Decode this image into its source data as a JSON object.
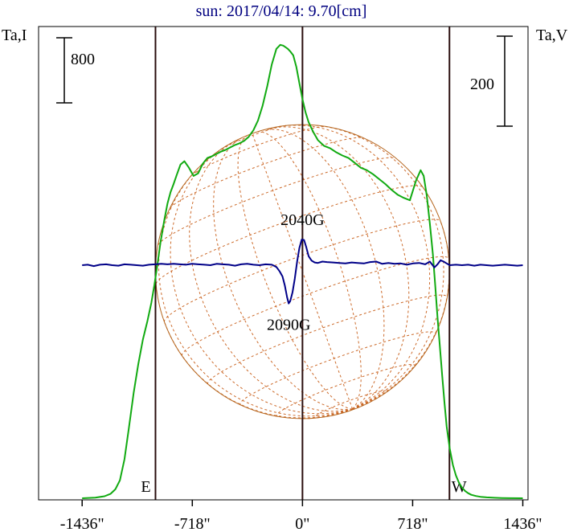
{
  "chart_data": {
    "type": "line",
    "title": "sun: 2017/04/14: 9.70[cm]",
    "ylabel_left": "Ta,I",
    "ylabel_right": "Ta,V",
    "xlim": [
      -1720,
      1470
    ],
    "x_ticks": [
      {
        "value": -1436,
        "label": "-1436\""
      },
      {
        "value": -718,
        "label": "-718\""
      },
      {
        "value": 0,
        "label": "0\""
      },
      {
        "value": 718,
        "label": "718\""
      },
      {
        "value": 1436,
        "label": "1436\""
      }
    ],
    "limb_markers": [
      {
        "x": -958,
        "label": "E"
      },
      {
        "x": 0,
        "label": ""
      },
      {
        "x": 958,
        "label": "W"
      }
    ],
    "solar_radius": 958,
    "scale_bars": [
      {
        "side": "left",
        "label": "800",
        "value": 800
      },
      {
        "side": "right",
        "label": "200",
        "value": 200
      }
    ],
    "annotations": [
      {
        "text": "2040G",
        "x": 0,
        "kind": "max"
      },
      {
        "text": "2090G",
        "x": -90,
        "kind": "min"
      }
    ],
    "series": [
      {
        "key": "I",
        "color": "#11aa11",
        "axis": "left",
        "x": [
          -1436,
          -1350,
          -1290,
          -1250,
          -1220,
          -1190,
          -1160,
          -1130,
          -1100,
          -1070,
          -1040,
          -1010,
          -985,
          -965,
          -945,
          -925,
          -900,
          -880,
          -860,
          -840,
          -818,
          -795,
          -770,
          -740,
          -710,
          -680,
          -650,
          -620,
          -590,
          -560,
          -530,
          -500,
          -470,
          -440,
          -410,
          -380,
          -350,
          -320,
          -290,
          -260,
          -230,
          -200,
          -170,
          -145,
          -125,
          -110,
          -95,
          -80,
          -60,
          -40,
          -20,
          0,
          20,
          40,
          70,
          100,
          140,
          180,
          220,
          260,
          300,
          340,
          380,
          420,
          460,
          500,
          540,
          580,
          620,
          660,
          700,
          740,
          770,
          790,
          810,
          830,
          850,
          865,
          880,
          895,
          910,
          925,
          940,
          960,
          980,
          1000,
          1020,
          1040,
          1060,
          1080,
          1100,
          1130,
          1160,
          1200,
          1250,
          1300,
          1350,
          1436
        ],
        "values": [
          0,
          8,
          25,
          55,
          110,
          220,
          480,
          880,
          1300,
          1650,
          1950,
          2180,
          2400,
          2620,
          2880,
          3150,
          3420,
          3620,
          3760,
          3860,
          3980,
          4100,
          4140,
          4060,
          3960,
          3990,
          4110,
          4180,
          4200,
          4230,
          4260,
          4280,
          4310,
          4340,
          4360,
          4390,
          4440,
          4520,
          4640,
          4820,
          5060,
          5330,
          5520,
          5570,
          5560,
          5540,
          5520,
          5490,
          5440,
          5300,
          5100,
          4900,
          4740,
          4620,
          4500,
          4400,
          4330,
          4300,
          4250,
          4210,
          4180,
          4120,
          4060,
          4030,
          3980,
          3920,
          3860,
          3790,
          3730,
          3690,
          3660,
          3900,
          4030,
          3960,
          3720,
          3380,
          3000,
          2620,
          2220,
          1880,
          1520,
          1180,
          880,
          610,
          410,
          280,
          190,
          130,
          90,
          62,
          42,
          28,
          18,
          11,
          6,
          3,
          1,
          0
        ]
      },
      {
        "key": "V",
        "color": "#000088",
        "axis": "right",
        "x": [
          -1436,
          -1400,
          -1360,
          -1320,
          -1280,
          -1240,
          -1200,
          -1160,
          -1120,
          -1080,
          -1040,
          -1000,
          -960,
          -920,
          -880,
          -840,
          -800,
          -760,
          -720,
          -680,
          -640,
          -600,
          -560,
          -520,
          -480,
          -440,
          -400,
          -360,
          -320,
          -280,
          -240,
          -200,
          -170,
          -150,
          -130,
          -115,
          -100,
          -90,
          -80,
          -65,
          -50,
          -35,
          -20,
          -5,
          10,
          25,
          40,
          60,
          80,
          100,
          130,
          160,
          200,
          240,
          280,
          320,
          360,
          400,
          440,
          480,
          520,
          560,
          600,
          640,
          680,
          720,
          760,
          800,
          830,
          860,
          880,
          900,
          920,
          940,
          960,
          1000,
          1040,
          1080,
          1120,
          1160,
          1200,
          1240,
          1280,
          1320,
          1360,
          1400,
          1436
        ],
        "values": [
          0,
          1,
          -2,
          1,
          2,
          0,
          -1,
          2,
          1,
          0,
          -1,
          1,
          2,
          3,
          2,
          3,
          2,
          1,
          3,
          2,
          1,
          0,
          3,
          2,
          1,
          -1,
          2,
          3,
          1,
          0,
          2,
          1,
          -4,
          -13,
          -25,
          -45,
          -72,
          -85,
          -80,
          -60,
          -30,
          8,
          38,
          57,
          56,
          40,
          20,
          10,
          6,
          5,
          8,
          7,
          6,
          5,
          4,
          6,
          5,
          4,
          7,
          8,
          3,
          5,
          3,
          4,
          1,
          4,
          5,
          2,
          8,
          -5,
          2,
          11,
          8,
          4,
          0,
          1,
          0,
          1,
          -1,
          1,
          0,
          -1,
          0,
          1,
          0,
          -1,
          0
        ]
      }
    ]
  }
}
